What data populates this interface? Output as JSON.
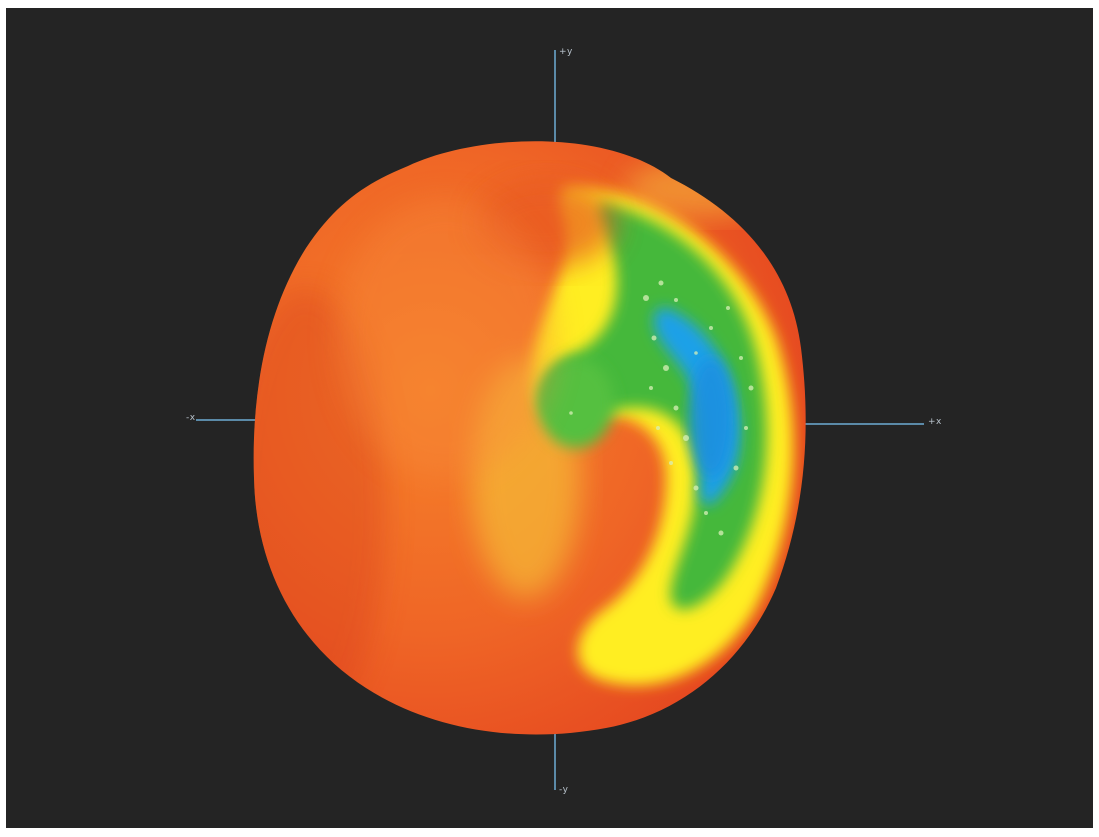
{
  "axes": {
    "top_label": "+y",
    "bottom_label": "-y",
    "left_label": "-x",
    "right_label": "+x",
    "color": "#5b8aa8"
  },
  "colormap": {
    "high": "#e8401f",
    "mid_high": "#f07a22",
    "mid": "#ffee22",
    "mid_low": "#3fb53a",
    "low": "#1aa0e8"
  },
  "background_color": "#242424"
}
